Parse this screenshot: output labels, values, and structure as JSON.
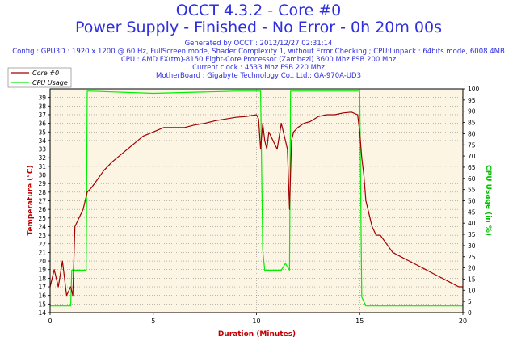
{
  "header": {
    "title": "OCCT 4.3.2 - Core #0",
    "subtitle": "Power Supply - Finished - No Error - 0h 20m 00s",
    "info_lines": [
      "Generated by OCCT : 2012/12/27 02:31:14",
      "Config : GPU3D : 1920 x 1200 @ 60 Hz, FullScreen mode, Shader Complexity 1, without Error Checking ; CPU:Linpack : 64bits mode, 6008.4MB",
      "CPU : AMD FX(tm)-8150 Eight-Core Processor (Zambezi) 3600 Mhz FSB 200 Mhz",
      "Current clock : 4533 Mhz FSB 220 Mhz",
      "MotherBoard : Gigabyte Technology Co., Ltd.: GA-970A-UD3"
    ]
  },
  "colors": {
    "title": "#2e2ee0",
    "axis_label": "#c00000",
    "right_axis_label": "#00c000",
    "core_series": "#a00000",
    "cpu_series": "#00ee00",
    "plot_background": "#fdf5e4",
    "grid": "#777777"
  },
  "chart_data": {
    "type": "line",
    "xlabel": "Duration (Minutes)",
    "ylabel": "Temperature (°C)",
    "y2label": "CPU Usage (in %)",
    "xlim": [
      0,
      20
    ],
    "ylim": [
      14,
      40
    ],
    "y2lim": [
      0,
      100
    ],
    "x_ticks": [
      0,
      5,
      10,
      15,
      20
    ],
    "y_ticks": [
      14,
      15,
      16,
      17,
      18,
      19,
      20,
      21,
      22,
      23,
      24,
      25,
      26,
      27,
      28,
      29,
      30,
      31,
      32,
      33,
      34,
      35,
      36,
      37,
      38,
      39
    ],
    "y2_ticks": [
      0,
      5,
      10,
      15,
      20,
      25,
      30,
      35,
      40,
      45,
      50,
      55,
      60,
      65,
      70,
      75,
      80,
      85,
      90,
      95,
      100
    ],
    "grid": true,
    "legend": "top-left",
    "series": [
      {
        "name": "Core #0",
        "axis": "left",
        "x": [
          0,
          0.2,
          0.4,
          0.6,
          0.8,
          1.0,
          1.1,
          1.2,
          1.4,
          1.6,
          1.7,
          1.8,
          2.0,
          2.3,
          2.6,
          3.0,
          3.5,
          4.0,
          4.5,
          5.0,
          5.5,
          6.0,
          6.5,
          7.0,
          7.5,
          8.0,
          8.5,
          9.0,
          9.5,
          10.0,
          10.1,
          10.2,
          10.3,
          10.4,
          10.5,
          10.6,
          10.8,
          11.0,
          11.2,
          11.4,
          11.5,
          11.6,
          11.7,
          11.8,
          12.0,
          12.3,
          12.6,
          13.0,
          13.4,
          13.8,
          14.2,
          14.6,
          14.9,
          15.0,
          15.1,
          15.2,
          15.3,
          15.4,
          15.5,
          15.6,
          15.8,
          16.0,
          16.3,
          16.6,
          17.0,
          17.4,
          17.8,
          18.2,
          18.6,
          19.0,
          19.4,
          19.8,
          20.0
        ],
        "y": [
          17,
          19,
          17,
          20,
          16,
          17,
          16,
          24,
          25,
          26,
          27,
          28,
          28.5,
          29.5,
          30.5,
          31.5,
          32.5,
          33.5,
          34.5,
          35,
          35.5,
          35.5,
          35.5,
          35.8,
          36,
          36.3,
          36.5,
          36.7,
          36.8,
          37,
          36.5,
          33,
          36,
          34,
          33,
          35,
          34,
          33,
          36,
          34,
          33,
          26,
          34,
          35,
          35.5,
          36,
          36.2,
          36.8,
          37,
          37,
          37.2,
          37.3,
          37,
          35,
          32,
          30,
          27,
          26,
          25,
          24,
          23,
          23,
          22,
          21,
          20.5,
          20,
          19.5,
          19,
          18.5,
          18,
          17.5,
          17,
          17
        ]
      },
      {
        "name": "CPU Usage",
        "axis": "right",
        "x": [
          0,
          1.0,
          1.05,
          1.5,
          1.75,
          1.8,
          2.0,
          5.0,
          9.0,
          10.0,
          10.2,
          10.3,
          10.4,
          10.6,
          11.2,
          11.4,
          11.6,
          11.65,
          11.7,
          12.0,
          14.0,
          15.0,
          15.1,
          15.3,
          17.0,
          20.0
        ],
        "y": [
          3,
          3,
          19,
          19,
          19,
          99,
          99,
          98,
          99,
          99,
          99,
          28,
          19,
          19,
          19,
          22,
          19,
          99,
          99,
          99,
          99,
          99,
          7,
          3,
          3,
          3
        ]
      }
    ]
  }
}
